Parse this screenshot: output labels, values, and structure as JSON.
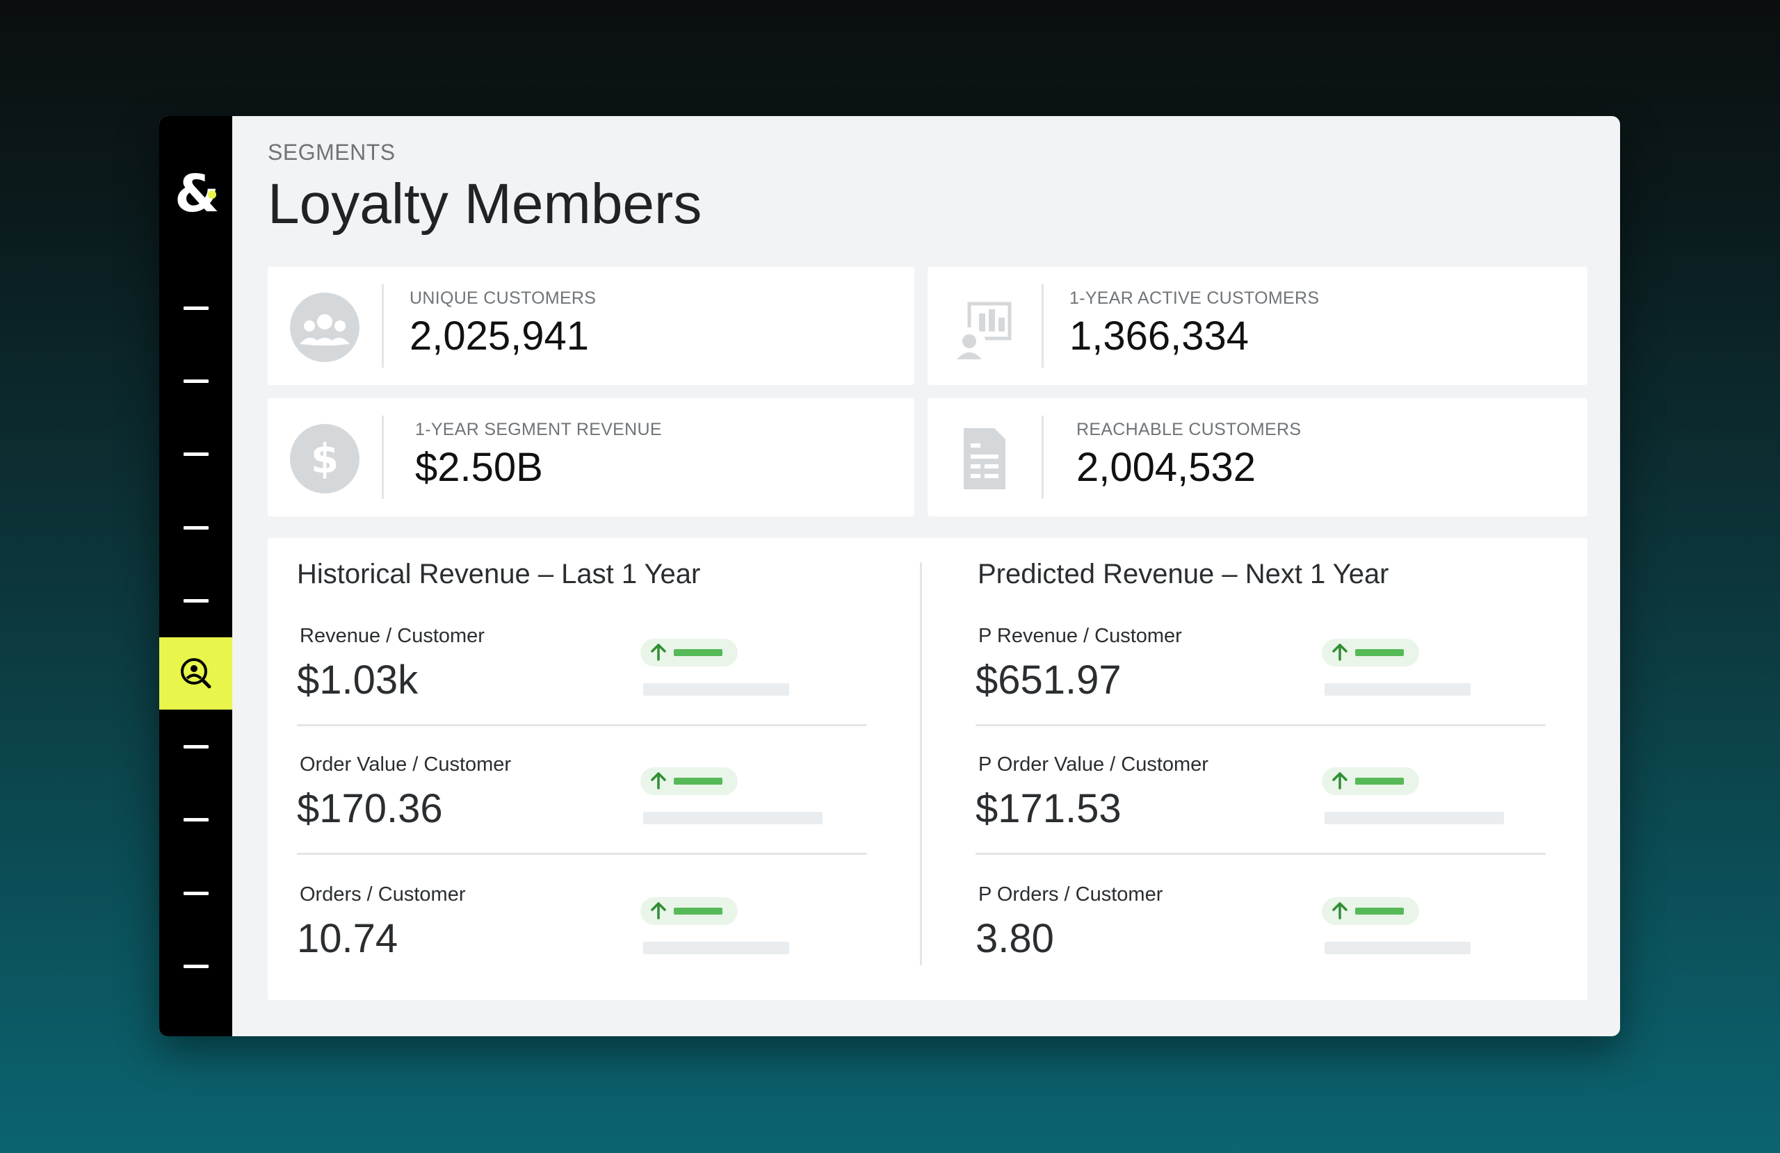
{
  "app": {
    "logo_symbol": "&",
    "accent_color": "#e8f54a",
    "positive_color": "#56b957"
  },
  "sidebar": {
    "items": [
      {
        "name": "nav-item-1",
        "active": false
      },
      {
        "name": "nav-item-2",
        "active": false
      },
      {
        "name": "nav-item-3",
        "active": false
      },
      {
        "name": "nav-item-4",
        "active": false
      },
      {
        "name": "nav-item-5",
        "active": false
      },
      {
        "name": "nav-item-segments",
        "icon": "search-person-icon",
        "active": true
      },
      {
        "name": "nav-item-7",
        "active": false
      },
      {
        "name": "nav-item-8",
        "active": false
      },
      {
        "name": "nav-item-9",
        "active": false
      },
      {
        "name": "nav-item-10",
        "active": false
      }
    ]
  },
  "header": {
    "eyebrow": "SEGMENTS",
    "title": "Loyalty Members"
  },
  "stats": [
    {
      "label": "UNIQUE CUSTOMERS",
      "value": "2,025,941",
      "icon": "people-group-icon"
    },
    {
      "label": "1-YEAR ACTIVE CUSTOMERS",
      "value": "1,366,334",
      "icon": "customer-chart-icon"
    },
    {
      "label": "1-YEAR SEGMENT REVENUE",
      "value": "$2.50B",
      "icon": "dollar-icon"
    },
    {
      "label": "REACHABLE CUSTOMERS",
      "value": "2,004,532",
      "icon": "document-list-icon"
    }
  ],
  "historical": {
    "title": "Historical Revenue – Last 1 Year",
    "metrics": [
      {
        "label": "Revenue / Customer",
        "value": "$1.03k",
        "trend": "up-arrow-icon"
      },
      {
        "label": "Order Value / Customer",
        "value": "$170.36",
        "trend": "up-arrow-icon"
      },
      {
        "label": "Orders / Customer",
        "value": "10.74",
        "trend": "up-arrow-icon"
      }
    ]
  },
  "predicted": {
    "title": "Predicted Revenue – Next 1 Year",
    "metrics": [
      {
        "label": "P Revenue / Customer",
        "value": "$651.97",
        "trend": "up-arrow-icon"
      },
      {
        "label": "P Order Value / Customer",
        "value": "$171.53",
        "trend": "up-arrow-icon"
      },
      {
        "label": "P Orders / Customer",
        "value": "3.80",
        "trend": "up-arrow-icon"
      }
    ]
  }
}
